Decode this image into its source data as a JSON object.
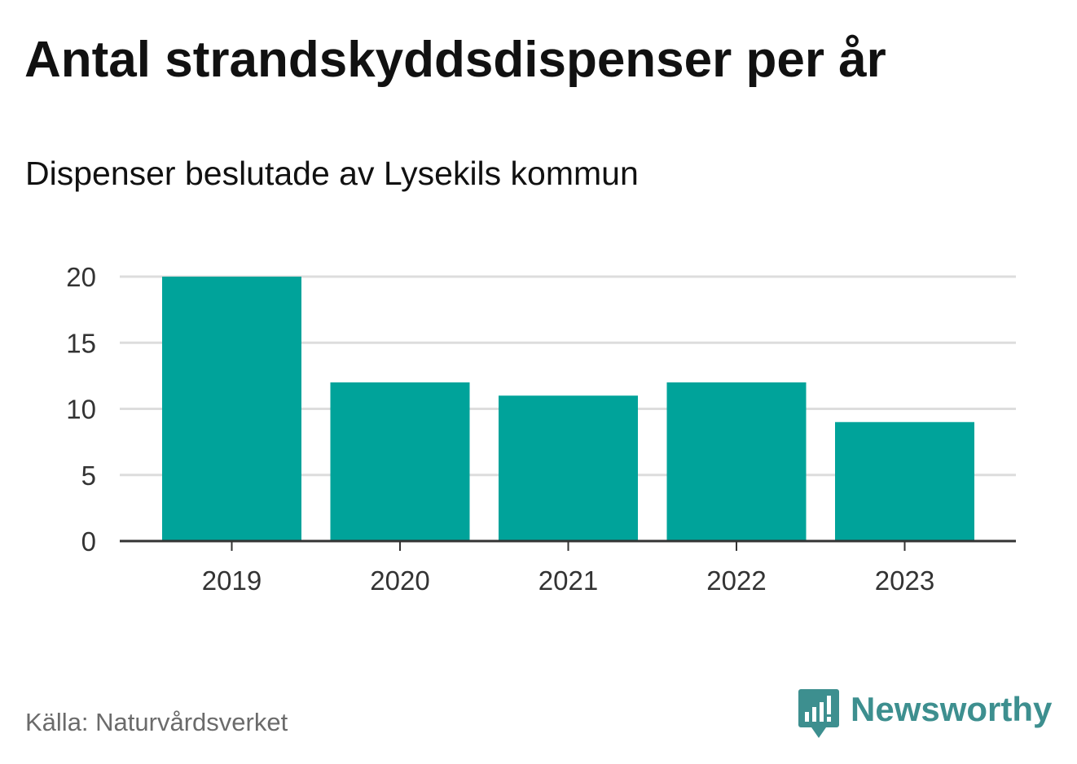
{
  "header": {
    "title": "Antal strandskyddsdispenser per år",
    "subtitle": "Dispenser beslutade av Lysekils kommun"
  },
  "footer": {
    "source": "Källa: Naturvårdsverket",
    "logo_text": "Newsworthy",
    "logo_icon": "newsworthy-bar-icon"
  },
  "colors": {
    "bar": "#00a39a",
    "grid": "#dddddd",
    "axis": "#333333",
    "logo": "#3d8f8f"
  },
  "chart_data": {
    "type": "bar",
    "title": "Antal strandskyddsdispenser per år",
    "subtitle": "Dispenser beslutade av Lysekils kommun",
    "categories": [
      "2019",
      "2020",
      "2021",
      "2022",
      "2023"
    ],
    "values": [
      20,
      12,
      11,
      12,
      9
    ],
    "xlabel": "",
    "ylabel": "",
    "ylim": [
      0,
      20
    ],
    "yticks": [
      0,
      5,
      10,
      15,
      20
    ],
    "grid": true,
    "legend": "none"
  }
}
